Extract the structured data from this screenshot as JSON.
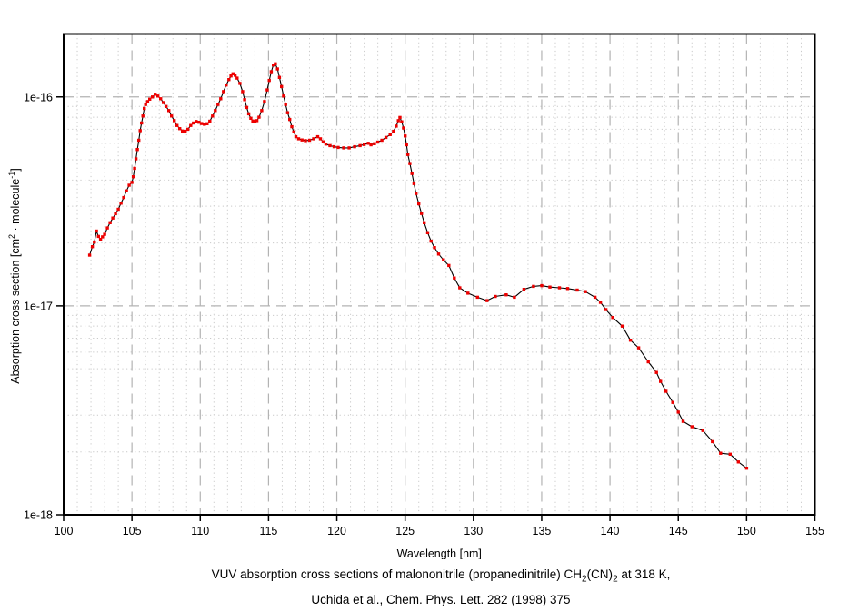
{
  "figure": {
    "background": "#ffffff",
    "caption_line2": "Uchida et al., Chem. Phys. Lett. 282 (1998) 375",
    "caption_line1_segments": [
      {
        "t": "VUV absorption cross sections of malononitrile (propanedinitrile) CH"
      },
      {
        "t": "2",
        "sub": true
      },
      {
        "t": "(CN)"
      },
      {
        "t": "2",
        "sub": true
      },
      {
        "t": " at 318 K,"
      }
    ],
    "ylabel_segments": [
      {
        "t": "Absorption cross section [cm"
      },
      {
        "t": "2",
        "sup": true
      },
      {
        "t": " · molecule"
      },
      {
        "t": "-1",
        "sup": true
      },
      {
        "t": "]"
      }
    ]
  },
  "chart_data": {
    "type": "line",
    "title": "VUV absorption cross sections of malononitrile (propanedinitrile) CH2(CN)2 at 318 K,",
    "subtitle": "Uchida et al., Chem. Phys. Lett. 282 (1998) 375",
    "xlabel": "Wavelength [nm]",
    "ylabel": "Absorption cross section [cm2 · molecule-1]",
    "xlim": [
      100,
      155
    ],
    "ylim": [
      1e-18,
      2e-16
    ],
    "yscale": "log",
    "x_major_ticks": [
      100,
      105,
      110,
      115,
      120,
      125,
      130,
      135,
      140,
      145,
      150,
      155
    ],
    "y_major_ticks": [
      {
        "v": 1e-18,
        "label": "1e-18"
      },
      {
        "v": 1e-17,
        "label": "1e-17"
      },
      {
        "v": 1e-16,
        "label": "1e-16"
      }
    ],
    "grid": {
      "major": "long-dash",
      "minor": "dotted",
      "x_minor_step": 1
    },
    "legend": "none",
    "series": [
      {
        "name": "absorption cross section",
        "line_color": "#000000",
        "marker_color": "#ee0000",
        "marker": "square",
        "points": [
          [
            101.9,
            1.75e-17
          ],
          [
            102.1,
            1.92e-17
          ],
          [
            102.25,
            2.02e-17
          ],
          [
            102.4,
            2.28e-17
          ],
          [
            102.55,
            2.15e-17
          ],
          [
            102.7,
            2.08e-17
          ],
          [
            102.85,
            2.14e-17
          ],
          [
            103.0,
            2.2e-17
          ],
          [
            103.2,
            2.36e-17
          ],
          [
            103.4,
            2.5e-17
          ],
          [
            103.6,
            2.63e-17
          ],
          [
            103.8,
            2.76e-17
          ],
          [
            104.0,
            2.9e-17
          ],
          [
            104.2,
            3.1e-17
          ],
          [
            104.4,
            3.3e-17
          ],
          [
            104.6,
            3.55e-17
          ],
          [
            104.8,
            3.78e-17
          ],
          [
            105.0,
            3.9e-17
          ],
          [
            105.1,
            4.15e-17
          ],
          [
            105.2,
            4.55e-17
          ],
          [
            105.3,
            5.05e-17
          ],
          [
            105.4,
            5.6e-17
          ],
          [
            105.5,
            6.2e-17
          ],
          [
            105.6,
            6.9e-17
          ],
          [
            105.7,
            7.5e-17
          ],
          [
            105.8,
            8.1e-17
          ],
          [
            105.9,
            8.8e-17
          ],
          [
            106.0,
            9.2e-17
          ],
          [
            106.15,
            9.5e-17
          ],
          [
            106.3,
            9.75e-17
          ],
          [
            106.5,
            1e-16
          ],
          [
            106.7,
            1.03e-16
          ],
          [
            106.9,
            1.01e-16
          ],
          [
            107.1,
            9.8e-17
          ],
          [
            107.3,
            9.4e-17
          ],
          [
            107.5,
            9e-17
          ],
          [
            107.7,
            8.6e-17
          ],
          [
            107.9,
            8.1e-17
          ],
          [
            108.1,
            7.7e-17
          ],
          [
            108.3,
            7.3e-17
          ],
          [
            108.5,
            7.05e-17
          ],
          [
            108.7,
            6.87e-17
          ],
          [
            108.9,
            6.84e-17
          ],
          [
            109.1,
            7e-17
          ],
          [
            109.3,
            7.3e-17
          ],
          [
            109.5,
            7.5e-17
          ],
          [
            109.7,
            7.63e-17
          ],
          [
            109.9,
            7.56e-17
          ],
          [
            110.1,
            7.46e-17
          ],
          [
            110.3,
            7.4e-17
          ],
          [
            110.5,
            7.44e-17
          ],
          [
            110.7,
            7.65e-17
          ],
          [
            110.9,
            8.1e-17
          ],
          [
            111.1,
            8.6e-17
          ],
          [
            111.3,
            9.2e-17
          ],
          [
            111.5,
            9.8e-17
          ],
          [
            111.7,
            1.06e-16
          ],
          [
            111.9,
            1.14e-16
          ],
          [
            112.1,
            1.21e-16
          ],
          [
            112.25,
            1.26e-16
          ],
          [
            112.4,
            1.29e-16
          ],
          [
            112.55,
            1.27e-16
          ],
          [
            112.7,
            1.23e-16
          ],
          [
            112.9,
            1.16e-16
          ],
          [
            113.1,
            1.06e-16
          ],
          [
            113.25,
            9.7e-17
          ],
          [
            113.4,
            8.9e-17
          ],
          [
            113.55,
            8.3e-17
          ],
          [
            113.7,
            7.9e-17
          ],
          [
            113.85,
            7.67e-17
          ],
          [
            114.0,
            7.62e-17
          ],
          [
            114.15,
            7.7e-17
          ],
          [
            114.3,
            8e-17
          ],
          [
            114.5,
            8.6e-17
          ],
          [
            114.7,
            9.5e-17
          ],
          [
            114.9,
            1.08e-16
          ],
          [
            115.05,
            1.2e-16
          ],
          [
            115.2,
            1.32e-16
          ],
          [
            115.35,
            1.42e-16
          ],
          [
            115.5,
            1.44e-16
          ],
          [
            115.65,
            1.36e-16
          ],
          [
            115.8,
            1.24e-16
          ],
          [
            115.95,
            1.12e-16
          ],
          [
            116.1,
            1.01e-16
          ],
          [
            116.25,
            9.2e-17
          ],
          [
            116.4,
            8.4e-17
          ],
          [
            116.55,
            7.8e-17
          ],
          [
            116.7,
            7.2e-17
          ],
          [
            116.85,
            6.8e-17
          ],
          [
            117.0,
            6.45e-17
          ],
          [
            117.2,
            6.3e-17
          ],
          [
            117.45,
            6.22e-17
          ],
          [
            117.7,
            6.18e-17
          ],
          [
            118.0,
            6.2e-17
          ],
          [
            118.3,
            6.3e-17
          ],
          [
            118.6,
            6.45e-17
          ],
          [
            118.8,
            6.3e-17
          ],
          [
            119.0,
            6.1e-17
          ],
          [
            119.2,
            5.95e-17
          ],
          [
            119.5,
            5.85e-17
          ],
          [
            119.8,
            5.78e-17
          ],
          [
            120.1,
            5.73e-17
          ],
          [
            120.5,
            5.7e-17
          ],
          [
            120.9,
            5.7e-17
          ],
          [
            121.3,
            5.78e-17
          ],
          [
            121.7,
            5.85e-17
          ],
          [
            122.0,
            5.92e-17
          ],
          [
            122.3,
            6e-17
          ],
          [
            122.5,
            5.9e-17
          ],
          [
            122.75,
            5.97e-17
          ],
          [
            123.0,
            6.08e-17
          ],
          [
            123.3,
            6.2e-17
          ],
          [
            123.6,
            6.4e-17
          ],
          [
            123.9,
            6.6e-17
          ],
          [
            124.15,
            6.85e-17
          ],
          [
            124.35,
            7.25e-17
          ],
          [
            124.5,
            7.7e-17
          ],
          [
            124.62,
            7.97e-17
          ],
          [
            124.75,
            7.6e-17
          ],
          [
            124.88,
            7.1e-17
          ],
          [
            125.0,
            6.5e-17
          ],
          [
            125.1,
            5.9e-17
          ],
          [
            125.2,
            5.3e-17
          ],
          [
            125.35,
            4.8e-17
          ],
          [
            125.5,
            4.3e-17
          ],
          [
            125.65,
            3.85e-17
          ],
          [
            125.8,
            3.45e-17
          ],
          [
            126.0,
            3.08e-17
          ],
          [
            126.2,
            2.77e-17
          ],
          [
            126.4,
            2.5e-17
          ],
          [
            126.65,
            2.24e-17
          ],
          [
            126.9,
            2.04e-17
          ],
          [
            127.15,
            1.9e-17
          ],
          [
            127.45,
            1.77e-17
          ],
          [
            127.8,
            1.66e-17
          ],
          [
            128.2,
            1.56e-17
          ],
          [
            128.6,
            1.36e-17
          ],
          [
            129.0,
            1.22e-17
          ],
          [
            129.6,
            1.15e-17
          ],
          [
            130.3,
            1.1e-17
          ],
          [
            131.0,
            1.06e-17
          ],
          [
            131.6,
            1.11e-17
          ],
          [
            132.4,
            1.13e-17
          ],
          [
            133.0,
            1.1e-17
          ],
          [
            133.7,
            1.2e-17
          ],
          [
            134.4,
            1.24e-17
          ],
          [
            135.0,
            1.25e-17
          ],
          [
            135.6,
            1.23e-17
          ],
          [
            136.3,
            1.22e-17
          ],
          [
            136.9,
            1.21e-17
          ],
          [
            137.6,
            1.19e-17
          ],
          [
            138.2,
            1.17e-17
          ],
          [
            138.9,
            1.1e-17
          ],
          [
            139.3,
            1.04e-17
          ],
          [
            139.7,
            9.6e-18
          ],
          [
            140.2,
            8.8e-18
          ],
          [
            140.9,
            8e-18
          ],
          [
            141.5,
            6.85e-18
          ],
          [
            142.1,
            6.3e-18
          ],
          [
            142.8,
            5.4e-18
          ],
          [
            143.4,
            4.8e-18
          ],
          [
            143.7,
            4.35e-18
          ],
          [
            144.1,
            3.9e-18
          ],
          [
            144.6,
            3.45e-18
          ],
          [
            145.0,
            3.1e-18
          ],
          [
            145.35,
            2.8e-18
          ],
          [
            146.0,
            2.64e-18
          ],
          [
            146.8,
            2.53e-18
          ],
          [
            147.5,
            2.24e-18
          ],
          [
            148.1,
            1.97e-18
          ],
          [
            148.8,
            1.95e-18
          ],
          [
            149.4,
            1.79e-18
          ],
          [
            150.0,
            1.67e-18
          ]
        ]
      }
    ]
  },
  "style": {
    "axis_color": "#000000",
    "major_grid_color": "#b3b3b3",
    "minor_grid_color": "#c9c9c9",
    "text_color": "#000000",
    "marker_color": "#ee0000",
    "line_color": "#000000"
  }
}
